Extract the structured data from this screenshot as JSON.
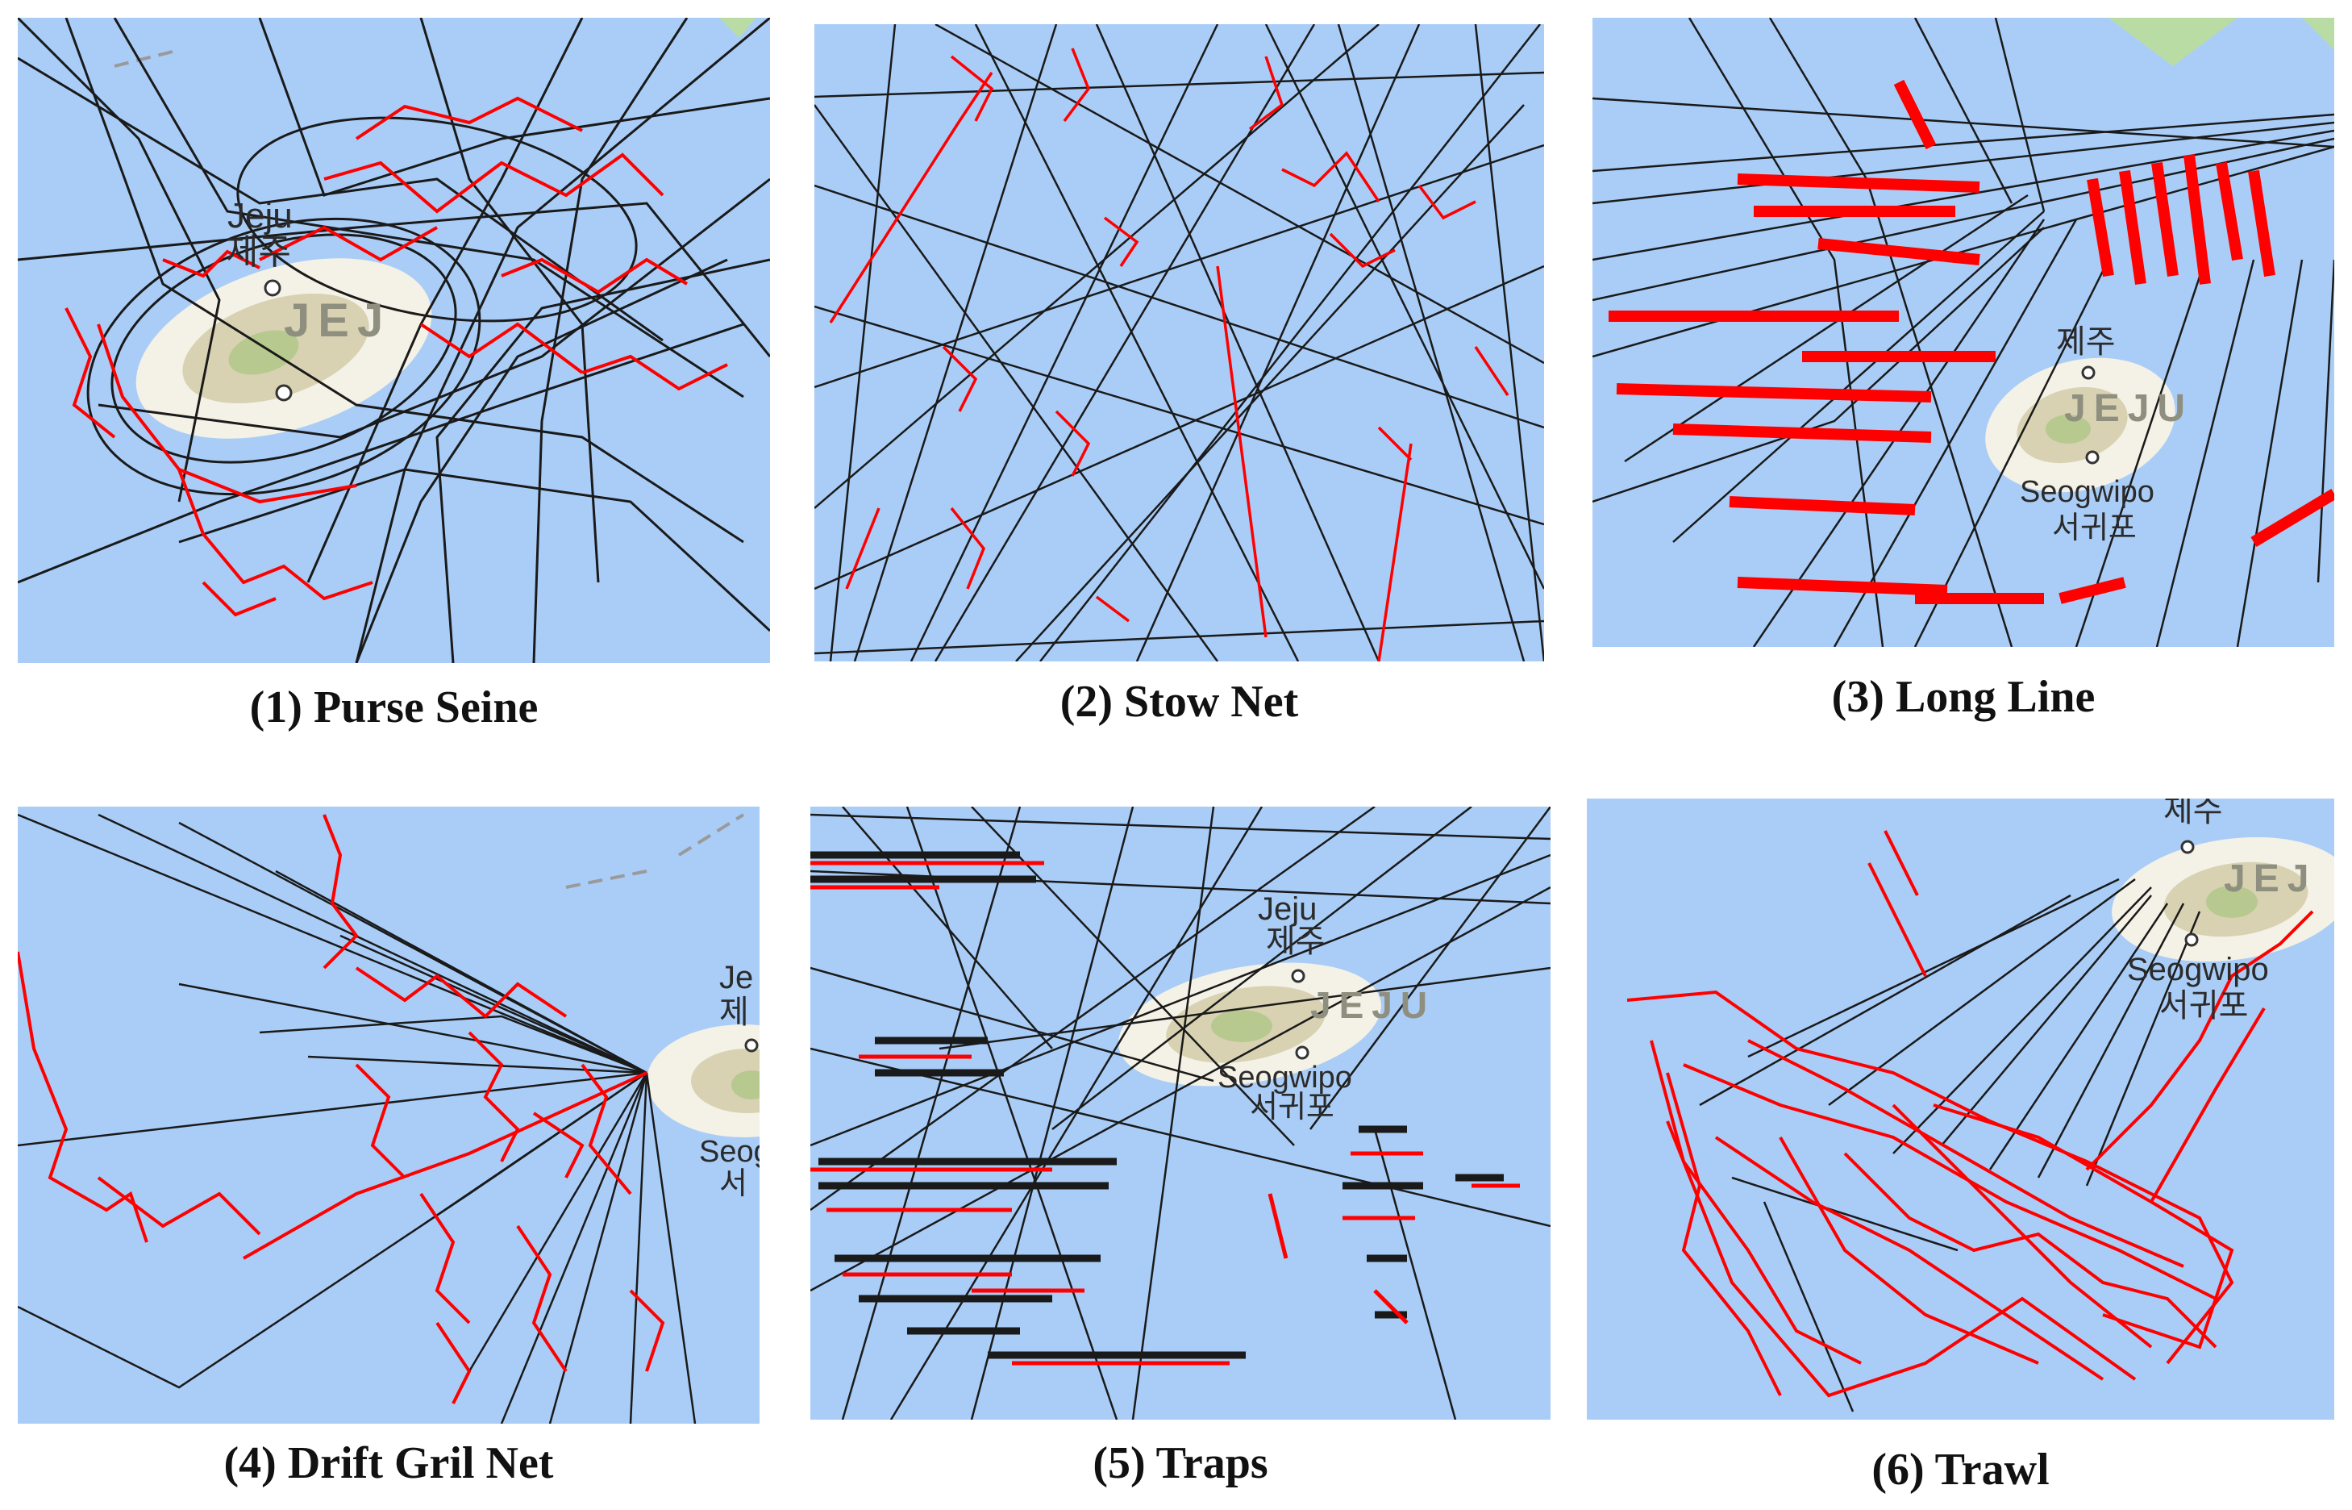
{
  "panels": [
    {
      "id": 1,
      "caption": "(1) Purse Seine",
      "labels": {
        "city_en": "Jeju",
        "city_ko": "제주",
        "island": "JEJ"
      }
    },
    {
      "id": 2,
      "caption": "(2) Stow Net",
      "labels": {}
    },
    {
      "id": 3,
      "caption": "(3) Long Line",
      "labels": {
        "city_ko": "제주",
        "island": "JEJU",
        "city2_en": "Seogwipo",
        "city2_ko": "서귀포"
      }
    },
    {
      "id": 4,
      "caption": "(4) Drift Gril Net",
      "labels": {
        "city_en": "Je",
        "city_ko": "제",
        "city2_en": "Seog",
        "city2_ko": "서"
      }
    },
    {
      "id": 5,
      "caption": "(5) Traps",
      "labels": {
        "city_en": "Jeju",
        "city_ko": "제주",
        "island": "JEJU",
        "city2_en": "Seogwipo",
        "city2_ko": "서귀포"
      }
    },
    {
      "id": 6,
      "caption": "(6) Trawl",
      "labels": {
        "city_ko": "제수",
        "island": "JEJ",
        "city2_en": "Seogwipo",
        "city2_ko": "서귀포"
      }
    }
  ],
  "colors": {
    "sea": "#a9cdf7",
    "track_black": "#1a1a1a",
    "track_red": "#ff0000",
    "island_outer": "#f4f1e6",
    "island_mid": "#d8d2b3",
    "island_inner": "#b7c98f",
    "land_green": "#b9dca4"
  }
}
